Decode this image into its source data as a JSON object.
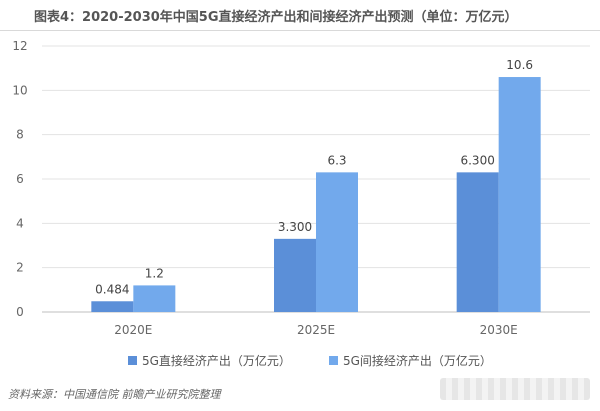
{
  "title": "图表4：2020-2030年中国5G直接经济产出和间接经济产出预测（单位：万亿元）",
  "source": "资料来源：中国通信院  前瞻产业研究院整理",
  "colors": {
    "direct": "#5b8fd8",
    "indirect": "#72a9ec",
    "grid": "#e3e3e3",
    "axis_text": "#666666"
  },
  "chart_data": {
    "type": "bar",
    "title": "",
    "categories": [
      "2020E",
      "2025E",
      "2030E"
    ],
    "series": [
      {
        "name": "5G直接经济产出（万亿元）",
        "values": [
          0.484,
          3.3,
          6.3
        ],
        "labels": [
          "0.484",
          "3.300",
          "6.300"
        ]
      },
      {
        "name": "5G间接经济产出（万亿元）",
        "values": [
          1.2,
          6.3,
          10.6
        ],
        "labels": [
          "1.2",
          "6.3",
          "10.6"
        ]
      }
    ],
    "ylim": [
      0,
      12
    ],
    "yticks": [
      "0",
      "2",
      "4",
      "6",
      "8",
      "10",
      "12"
    ],
    "grid": true,
    "legend": "bottom"
  }
}
